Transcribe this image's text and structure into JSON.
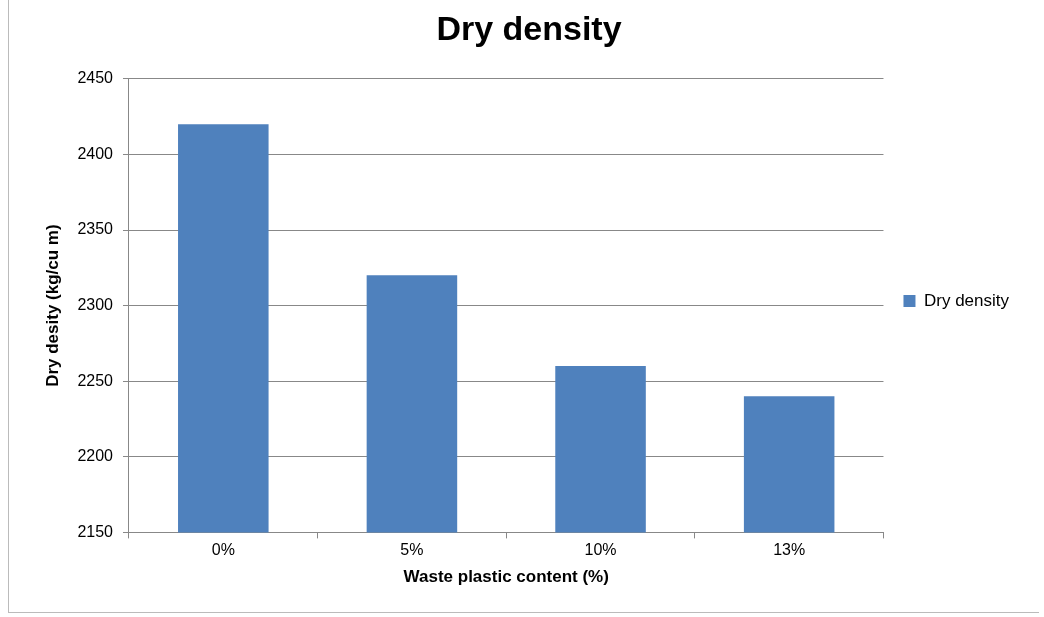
{
  "chart_data": {
    "type": "bar",
    "title": "Dry density",
    "xlabel": "Waste plastic content (%)",
    "ylabel": "Dry desity (kg/cu m)",
    "categories": [
      "0%",
      "5%",
      "10%",
      "13%"
    ],
    "series": [
      {
        "name": "Dry density",
        "color": "#4f81bd",
        "values": [
          2420,
          2320,
          2260,
          2240
        ]
      }
    ],
    "ylim": [
      2150,
      2450
    ],
    "yticks": [
      2150,
      2200,
      2250,
      2300,
      2350,
      2400,
      2450
    ],
    "grid": "y",
    "legend": "right"
  }
}
